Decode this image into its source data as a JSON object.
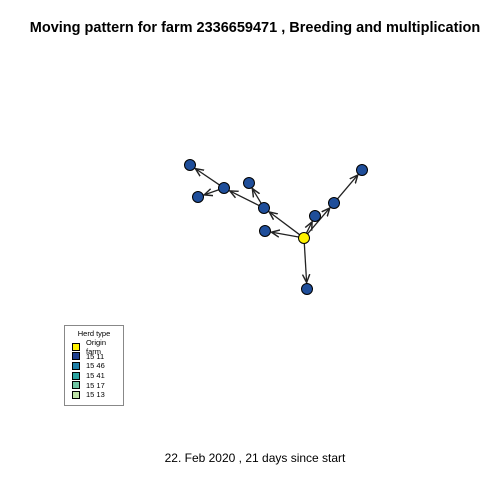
{
  "title": "Moving pattern for farm 2336659471 , Breeding and multiplication",
  "caption": "22. Feb 2020 ,  21 days since start",
  "colors": {
    "origin": "#FFF200",
    "destination": "#1F4E9A",
    "edge": "#222222"
  },
  "legend": {
    "title": "Herd type",
    "items": [
      {
        "label": "Origin farm",
        "color": "#FFF200"
      },
      {
        "label": "15 11",
        "color": "#1F3F8F"
      },
      {
        "label": "15 46",
        "color": "#1F7FA8"
      },
      {
        "label": "15 41",
        "color": "#2BA3A0"
      },
      {
        "label": "15 17",
        "color": "#6FC4A2"
      },
      {
        "label": "15 13",
        "color": "#BFE3A8"
      }
    ]
  }
}
